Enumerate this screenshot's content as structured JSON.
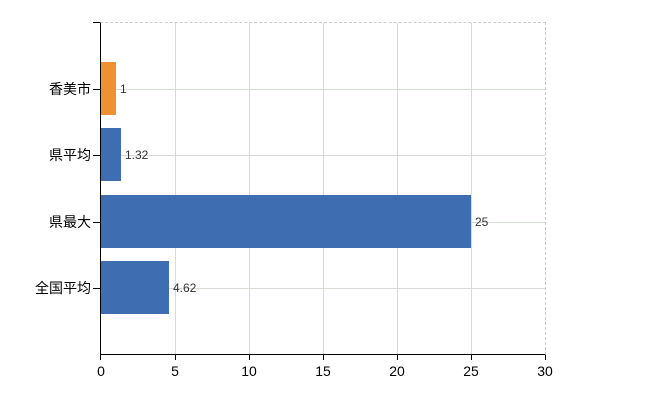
{
  "chart_data": {
    "type": "bar",
    "orientation": "horizontal",
    "title": "",
    "categories": [
      "香美市",
      "県平均",
      "県最大",
      "全国平均"
    ],
    "values": [
      1,
      1.32,
      25,
      4.62
    ],
    "value_labels": [
      "1",
      "1.32",
      "25",
      "4.62"
    ],
    "series_colors": [
      "#ef9033",
      "#3e6db1",
      "#3e6db1",
      "#3e6db1"
    ],
    "xlim": [
      0,
      30
    ],
    "x_ticks": [
      0,
      5,
      10,
      15,
      20,
      25,
      30
    ],
    "x_tick_labels": [
      "0",
      "5",
      "10",
      "15",
      "20",
      "25",
      "30"
    ],
    "grid": true,
    "legend": false,
    "highlighted_category": "香美市"
  },
  "colors": {
    "background": "#ffffff",
    "axis": "#000000",
    "grid_vertical": "#d9d9d9",
    "grid_horizontal": "#d4dcd4",
    "frame_dashed": "#c9cdc9",
    "value_label": "#333333",
    "tick_label": "#000000"
  }
}
